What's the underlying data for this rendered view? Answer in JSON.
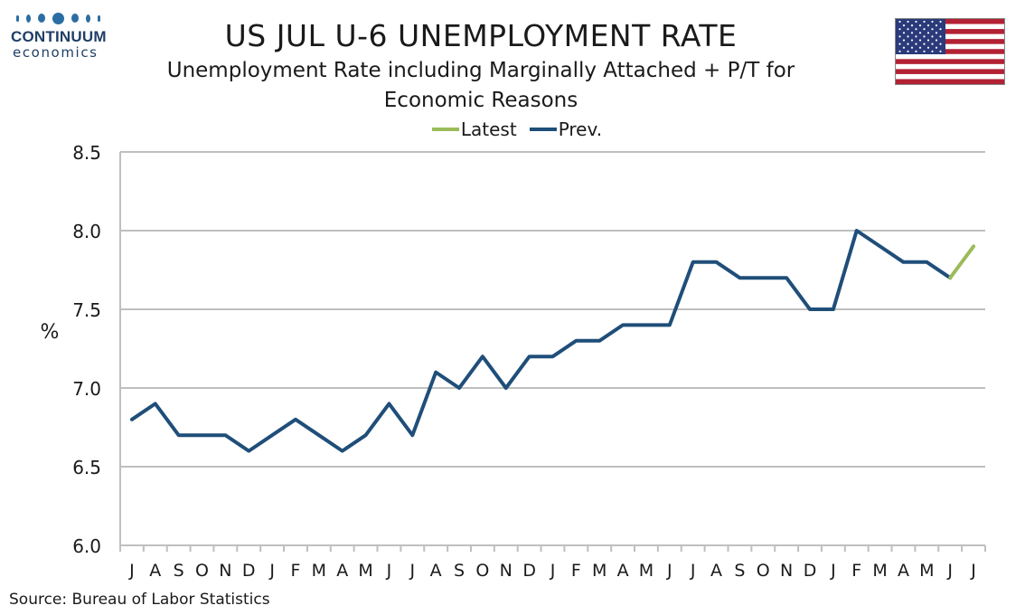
{
  "logo": {
    "word": "CONTINUUM",
    "sub": "economics"
  },
  "header": {
    "title": "US JUL U-6 UNEMPLOYMENT RATE",
    "subtitle_line1": "Unemployment Rate including Marginally Attached + P/T for",
    "subtitle_line2": "Economic Reasons"
  },
  "legend": [
    {
      "label": "Latest",
      "color": "#9bbb59"
    },
    {
      "label": "Prev.",
      "color": "#1f4e79"
    }
  ],
  "footer": {
    "source": "Source: Bureau of Labor Statistics"
  },
  "chart_data": {
    "type": "line",
    "title": "US JUL U-6 UNEMPLOYMENT RATE",
    "ylabel": "%",
    "xlabel": "",
    "ylim": [
      6.0,
      8.5
    ],
    "yticks": [
      "6.0",
      "6.5",
      "7.0",
      "7.5",
      "8.0",
      "8.5"
    ],
    "grid": true,
    "legend_position": "top-center",
    "categories": [
      "J",
      "A",
      "S",
      "O",
      "N",
      "D",
      "J",
      "F",
      "M",
      "A",
      "M",
      "J",
      "J",
      "A",
      "S",
      "O",
      "N",
      "D",
      "J",
      "F",
      "M",
      "A",
      "M",
      "J",
      "J",
      "A",
      "S",
      "O",
      "N",
      "D",
      "J",
      "F",
      "M",
      "A",
      "M",
      "J",
      "J"
    ],
    "series": [
      {
        "name": "Prev.",
        "color": "#1f4e79",
        "values": [
          6.8,
          6.9,
          6.7,
          6.7,
          6.7,
          6.6,
          6.7,
          6.8,
          6.7,
          6.6,
          6.7,
          6.9,
          6.7,
          7.1,
          7.0,
          7.2,
          7.0,
          7.2,
          7.2,
          7.3,
          7.3,
          7.4,
          7.4,
          7.4,
          7.8,
          7.8,
          7.7,
          7.7,
          7.7,
          7.5,
          7.5,
          8.0,
          7.9,
          7.8,
          7.8,
          7.7,
          null
        ]
      },
      {
        "name": "Latest",
        "color": "#9bbb59",
        "values": [
          null,
          null,
          null,
          null,
          null,
          null,
          null,
          null,
          null,
          null,
          null,
          null,
          null,
          null,
          null,
          null,
          null,
          null,
          null,
          null,
          null,
          null,
          null,
          null,
          null,
          null,
          null,
          null,
          null,
          null,
          null,
          null,
          null,
          null,
          null,
          7.7,
          7.9
        ]
      }
    ]
  }
}
